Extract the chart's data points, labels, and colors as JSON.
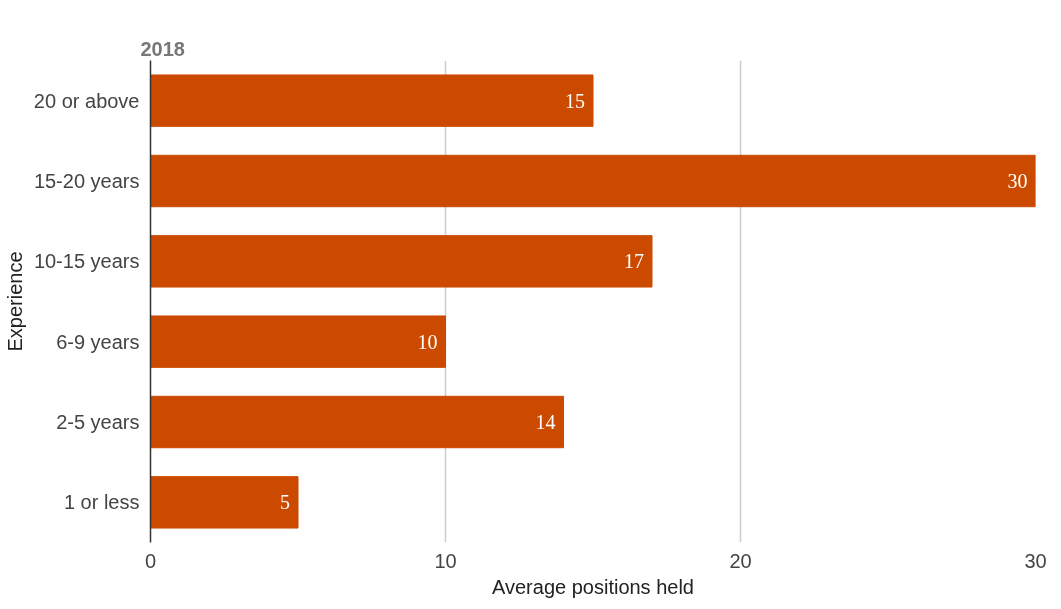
{
  "chart_data": {
    "type": "bar",
    "orientation": "horizontal",
    "title": "2018",
    "xlabel": "Average positions held",
    "ylabel": "Experience",
    "categories": [
      "20 or above",
      "15-20 years",
      "10-15 years",
      "6-9 years",
      "2-5 years",
      "1 or less"
    ],
    "values": [
      15,
      30,
      17,
      10,
      14,
      5
    ],
    "color": "#cc4a00",
    "data_labels": true,
    "xlim": [
      0,
      30
    ],
    "xticks": [
      0,
      10,
      20,
      30
    ],
    "grid": "x"
  }
}
